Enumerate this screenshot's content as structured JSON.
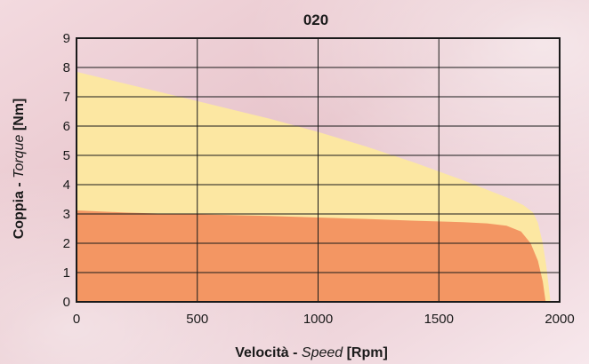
{
  "chart_data": {
    "type": "area",
    "title": "020",
    "xlabel": {
      "bold": "Velocità - ",
      "italic": "Speed",
      "bold_end": " [Rpm]"
    },
    "ylabel": {
      "bold": "Coppia - ",
      "italic": "Torque",
      "bold_end": " [Nm]"
    },
    "xlim": [
      0,
      2000
    ],
    "ylim": [
      0,
      9
    ],
    "x_ticks": [
      0,
      500,
      1000,
      1500,
      2000
    ],
    "y_ticks": [
      0,
      1,
      2,
      3,
      4,
      5,
      6,
      7,
      8,
      9
    ],
    "grid": true,
    "series": [
      {
        "color": "#fce7a2",
        "points": [
          [
            0,
            7.85
          ],
          [
            200,
            7.45
          ],
          [
            400,
            7.05
          ],
          [
            600,
            6.65
          ],
          [
            800,
            6.25
          ],
          [
            1000,
            5.8
          ],
          [
            1200,
            5.3
          ],
          [
            1400,
            4.75
          ],
          [
            1600,
            4.15
          ],
          [
            1800,
            3.5
          ],
          [
            1850,
            3.3
          ],
          [
            1890,
            3.05
          ],
          [
            1910,
            2.7
          ],
          [
            1930,
            2.0
          ],
          [
            1945,
            1.2
          ],
          [
            1955,
            0.5
          ],
          [
            1962,
            0
          ]
        ]
      },
      {
        "color": "#f39663",
        "points": [
          [
            0,
            3.12
          ],
          [
            200,
            3.05
          ],
          [
            400,
            3.0
          ],
          [
            600,
            2.97
          ],
          [
            800,
            2.93
          ],
          [
            1000,
            2.88
          ],
          [
            1200,
            2.83
          ],
          [
            1400,
            2.77
          ],
          [
            1600,
            2.72
          ],
          [
            1700,
            2.68
          ],
          [
            1780,
            2.6
          ],
          [
            1840,
            2.4
          ],
          [
            1880,
            2.0
          ],
          [
            1910,
            1.4
          ],
          [
            1930,
            0.7
          ],
          [
            1942,
            0
          ]
        ]
      }
    ]
  }
}
